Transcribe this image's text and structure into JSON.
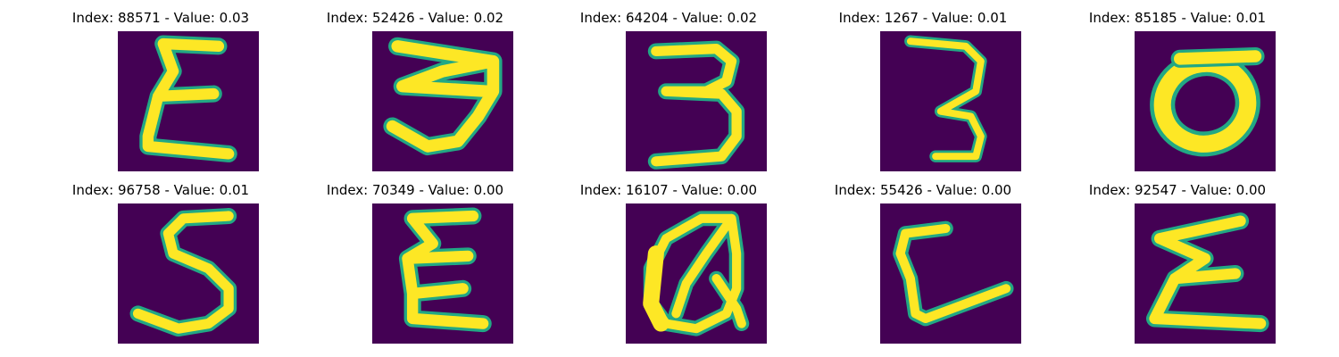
{
  "panels": [
    {
      "title": "Index: 88571 - Value: 0.03",
      "glyph": "sigma-e-icon"
    },
    {
      "title": "Index: 52426 - Value: 0.02",
      "glyph": "sideways-3-icon"
    },
    {
      "title": "Index: 64204 - Value: 0.02",
      "glyph": "digit-3-icon"
    },
    {
      "title": "Index: 1267 - Value: 0.01",
      "glyph": "thin-3-icon"
    },
    {
      "title": "Index: 85185 - Value: 0.01",
      "glyph": "digit-0-icon"
    },
    {
      "title": "Index: 96758 - Value: 0.01",
      "glyph": "digit-5-icon"
    },
    {
      "title": "Index: 70349 - Value: 0.00",
      "glyph": "sigma-e-icon"
    },
    {
      "title": "Index: 16107 - Value: 0.00",
      "glyph": "letter-q-icon"
    },
    {
      "title": "Index: 55426 - Value: 0.00",
      "glyph": "letter-l-icon"
    },
    {
      "title": "Index: 92547 - Value: 0.00",
      "glyph": "sigma-icon"
    }
  ],
  "colors": {
    "background": "#440154",
    "stroke_edge": "#22a884",
    "stroke_core": "#fde725"
  }
}
